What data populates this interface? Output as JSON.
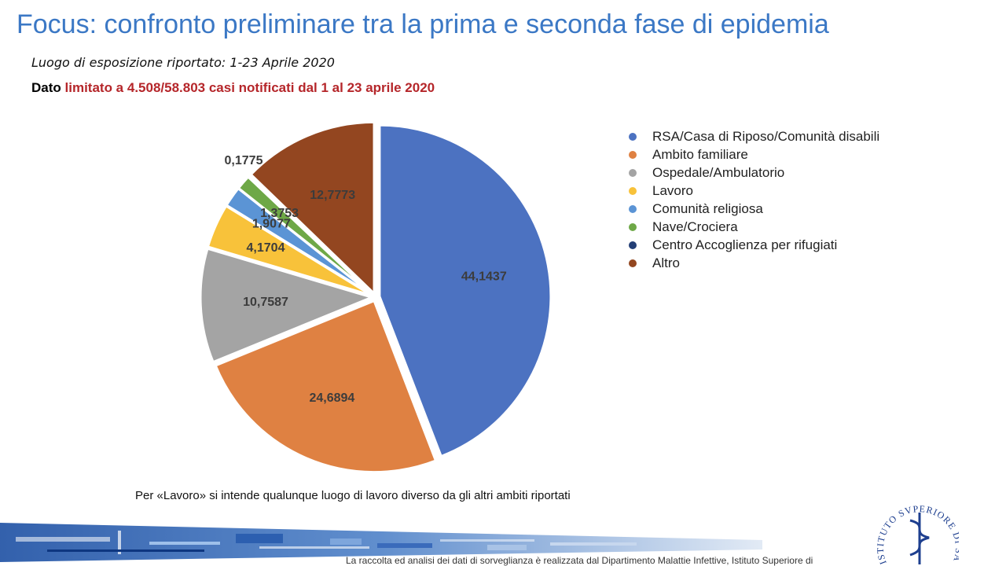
{
  "slide": {
    "title": "Focus: confronto preliminare tra la prima e seconda fase di epidemia",
    "subtitle": "Luogo di esposizione riportato: 1-23 Aprile 2020",
    "note_lead": "Dato",
    "note_rest": "limitato a 4.508/58.803 casi notificati dal 1 al 23 aprile 2020",
    "footnote": "Per «Lavoro» si intende qualunque luogo di lavoro diverso da gli altri ambiti riportati",
    "credit": "La raccolta ed analisi dei dati di sorveglianza è realizzata dal Dipartimento Malattie Infettive, Istituto Superiore di",
    "logo_text": "ISTITUTO SVPERIORE DI SANITÀ"
  },
  "chart_data": {
    "type": "pie",
    "title": "",
    "series": [
      {
        "name": "RSA/Casa di Riposo/Comunità disabili",
        "value": 44.1437,
        "label": "44,1437",
        "color": "#4c72c1"
      },
      {
        "name": "Ambito familiare",
        "value": 24.6894,
        "label": "24,6894",
        "color": "#df8142"
      },
      {
        "name": "Ospedale/Ambulatorio",
        "value": 10.7587,
        "label": "10,7587",
        "color": "#a4a4a4"
      },
      {
        "name": "Lavoro",
        "value": 4.1704,
        "label": "4,1704",
        "color": "#f8c23a"
      },
      {
        "name": "Comunità religiosa",
        "value": 1.9077,
        "label": "1,9077",
        "color": "#5b94d5"
      },
      {
        "name": "Nave/Crociera",
        "value": 1.3753,
        "label": "1,3753",
        "color": "#6ea847"
      },
      {
        "name": "Centro Accoglienza per rifugiati",
        "value": 0.1775,
        "label": "0,1775",
        "color": "#233e75"
      },
      {
        "name": "Altro",
        "value": 12.7773,
        "label": "12,7773",
        "color": "#934620"
      }
    ],
    "legend_position": "right",
    "start_angle": "12 o'clock",
    "direction": "clockwise"
  }
}
